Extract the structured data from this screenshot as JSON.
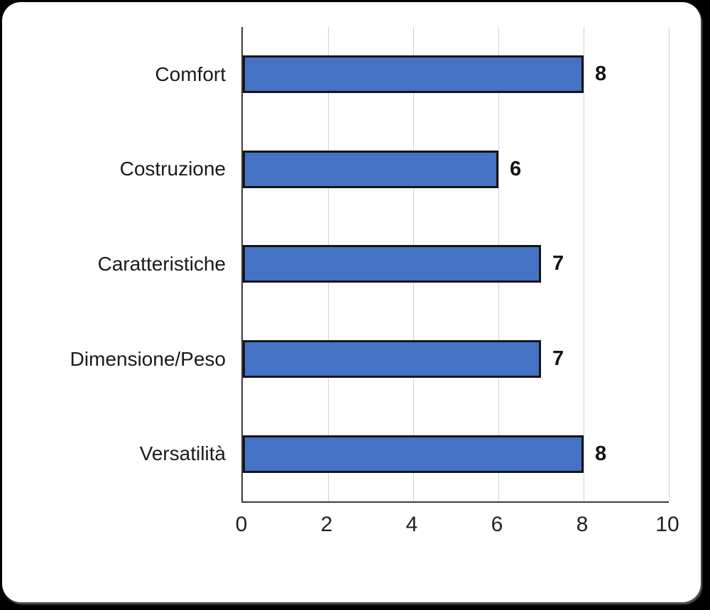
{
  "chart_data": {
    "type": "bar",
    "orientation": "horizontal",
    "title": "",
    "xlabel": "",
    "ylabel": "",
    "categories": [
      "Comfort",
      "Costruzione",
      "Caratteristiche",
      "Dimensione/Peso",
      "Versatilità"
    ],
    "values": [
      8,
      6,
      7,
      7,
      8
    ],
    "data_labels": [
      "8",
      "6",
      "7",
      "7",
      "8"
    ],
    "xlim": [
      0,
      10
    ],
    "x_ticks": [
      0,
      2,
      4,
      6,
      8,
      10
    ],
    "grid": "vertical-on",
    "legend": "none",
    "colors": {
      "bar_fill": "#4472C4",
      "bar_border": "#141414",
      "gridline": "#D2D2D2",
      "axis_line": "#3B3B3B",
      "label_text": "#1A1A1A",
      "tick_text": "#212121",
      "card_background": "#FFFFFF",
      "page_background": "#000000"
    }
  }
}
